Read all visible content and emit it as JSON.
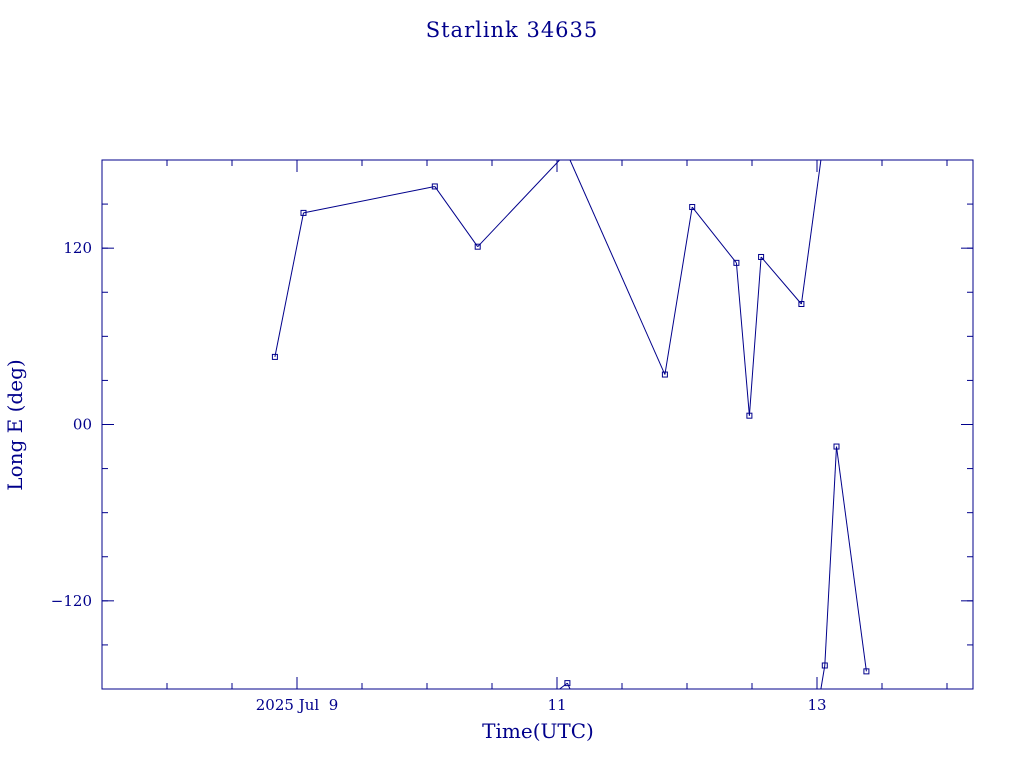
{
  "colors": {
    "ink": "#00008b",
    "background": "#ffffff"
  },
  "chart_data": {
    "type": "line",
    "title": "Starlink 34635",
    "xlabel": "Time(UTC)",
    "ylabel": "Long E (deg)",
    "x_unit": "days (2025 Jul)",
    "xlim": [
      7.5,
      14.2
    ],
    "ylim": [
      -180,
      180
    ],
    "x_ticks": [
      {
        "value": 9,
        "label": "2025 Jul  9"
      },
      {
        "value": 11,
        "label": "11"
      },
      {
        "value": 13,
        "label": "13"
      }
    ],
    "y_ticks": [
      {
        "value": 120,
        "label": "120"
      },
      {
        "value": 0,
        "label": "00"
      },
      {
        "value": -120,
        "label": "−120"
      }
    ],
    "grid": false,
    "legend": "none",
    "wrap_longitude": true,
    "series": [
      {
        "x": [
          8.83,
          9.05,
          10.06,
          10.39,
          11.02,
          11.08,
          11.83,
          12.04,
          12.38,
          12.48,
          12.57,
          12.88,
          13.03,
          13.06,
          13.15,
          13.38
        ],
        "y": [
          46,
          144,
          162,
          121,
          180,
          -176,
          34,
          148,
          110,
          6,
          114,
          82,
          180,
          -164,
          -15,
          -168
        ]
      }
    ]
  }
}
